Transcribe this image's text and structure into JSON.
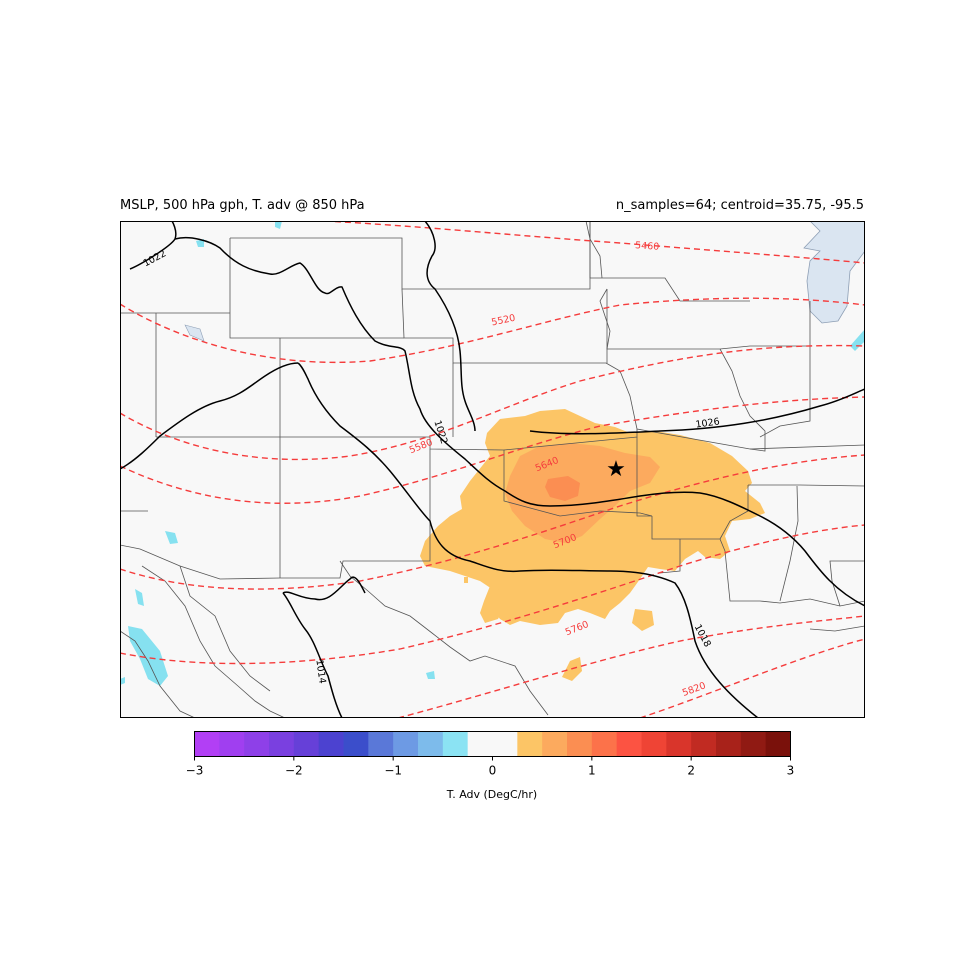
{
  "title_left": "MSLP, 500 hPa gph, T. adv @ 850 hPa",
  "title_right": "n_samples=64; centroid=35.75, -95.5",
  "colors": {
    "background": "#f8f8f8",
    "warm_light": "#fcc566",
    "warm_mid": "#fcaa5e",
    "warm_strong": "#f88b57",
    "cold_light": "#86e1f0",
    "water": "#dae5f1",
    "gph_contour": "#f53c3c",
    "mslp_contour": "#000000",
    "border": "#555555"
  },
  "gph_labels": [
    {
      "value": "5460"
    },
    {
      "value": "5520"
    },
    {
      "value": "5580"
    },
    {
      "value": "5640"
    },
    {
      "value": "5700"
    },
    {
      "value": "5760"
    },
    {
      "value": "5820"
    }
  ],
  "mslp_labels": [
    {
      "value": "1022"
    },
    {
      "value": "1022"
    },
    {
      "value": "1026"
    },
    {
      "value": "1018"
    },
    {
      "value": "1014"
    }
  ],
  "marker": {
    "symbol": "★",
    "name": "centroid-star"
  },
  "colorbar": {
    "label": "T. Adv (DegC/hr)",
    "ticks": [
      "−3",
      "−2",
      "−1",
      "0",
      "1",
      "2",
      "3"
    ],
    "range": [
      -3,
      3
    ],
    "colors": [
      "#b23ff5",
      "#a03ff0",
      "#8e40e8",
      "#7a40e0",
      "#6640d8",
      "#4c42d0",
      "#3b4ecb",
      "#5a78d8",
      "#6d9ae4",
      "#7dbbeb",
      "#8be3f3",
      "#f8f8f8",
      "#f8f8f8",
      "#fcc566",
      "#fcaa5e",
      "#fb8e52",
      "#fc724a",
      "#fc5342",
      "#ef4435",
      "#d9352b",
      "#c12b22",
      "#a8221a",
      "#901a13",
      "#7a110b"
    ]
  }
}
